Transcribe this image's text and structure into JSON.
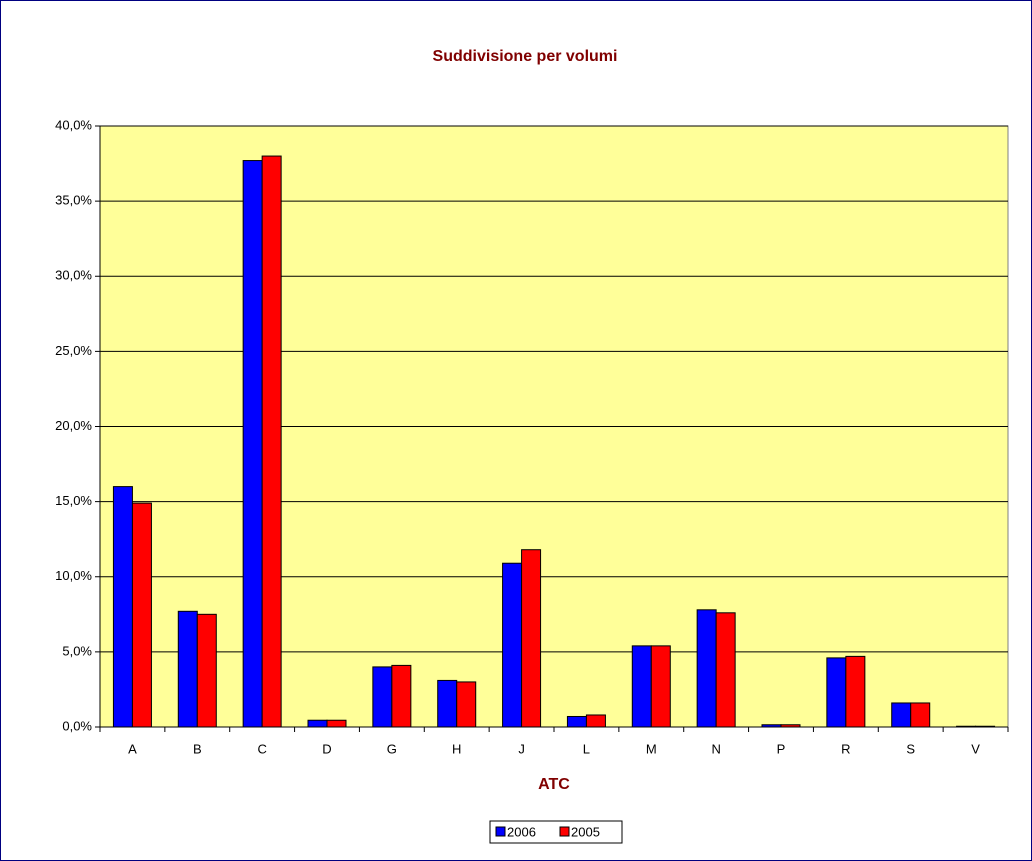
{
  "chart_data": {
    "type": "bar",
    "title": "Suddivisione per volumi",
    "x_label": "ATC",
    "categories": [
      "A",
      "B",
      "C",
      "D",
      "G",
      "H",
      "J",
      "L",
      "M",
      "N",
      "P",
      "R",
      "S",
      "V"
    ],
    "series": [
      {
        "name": "2006",
        "color": "#0000ff",
        "values": [
          16.0,
          7.7,
          37.7,
          0.45,
          4.0,
          3.1,
          10.9,
          0.7,
          5.4,
          7.8,
          0.15,
          4.6,
          1.6,
          0.05
        ]
      },
      {
        "name": "2005",
        "color": "#ff0000",
        "values": [
          14.9,
          7.5,
          38.0,
          0.45,
          4.1,
          3.0,
          11.8,
          0.8,
          5.4,
          7.6,
          0.15,
          4.7,
          1.6,
          0.05
        ]
      }
    ],
    "ylim": [
      0,
      40
    ],
    "yticks": [
      {
        "value": 0,
        "label": "0,0%"
      },
      {
        "value": 5,
        "label": "5,0%"
      },
      {
        "value": 10,
        "label": "10,0%"
      },
      {
        "value": 15,
        "label": "15,0%"
      },
      {
        "value": 20,
        "label": "20,0%"
      },
      {
        "value": 25,
        "label": "25,0%"
      },
      {
        "value": 30,
        "label": "30,0%"
      },
      {
        "value": 35,
        "label": "35,0%"
      },
      {
        "value": 40,
        "label": "40,0%"
      }
    ],
    "grid": true,
    "legend": "bottom",
    "plot_background": "#ffff99"
  }
}
